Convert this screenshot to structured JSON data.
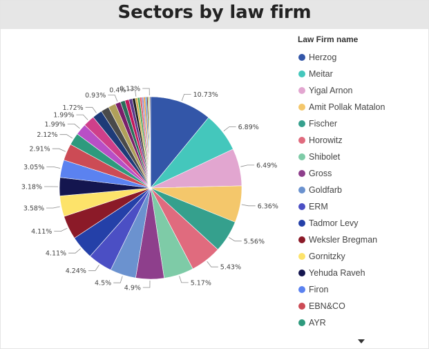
{
  "chart_data": {
    "type": "pie",
    "title": "Sectors by law firm",
    "legend_title": "Law Firm name",
    "legend_placement": "right",
    "series": [
      {
        "name": "Herzog",
        "value": 10.73,
        "label": "10.73%",
        "color": "#3356a8"
      },
      {
        "name": "Meitar",
        "value": 6.89,
        "label": "6.89%",
        "color": "#44c7bc"
      },
      {
        "name": "Yigal Arnon",
        "value": 6.49,
        "label": "6.49%",
        "color": "#e2a6d0"
      },
      {
        "name": "Amit Pollak Matalon",
        "value": 6.36,
        "label": "6.36%",
        "color": "#f4c76b"
      },
      {
        "name": "Fischer",
        "value": 5.56,
        "label": "5.56%",
        "color": "#35a08d"
      },
      {
        "name": "Horowitz",
        "value": 5.43,
        "label": "5.43%",
        "color": "#e06b7e"
      },
      {
        "name": "Shibolet",
        "value": 5.17,
        "label": "5.17%",
        "color": "#7ecba7"
      },
      {
        "name": "Gross",
        "value": 4.9,
        "label": "4.9%",
        "color": "#8e3f8c"
      },
      {
        "name": "Goldfarb",
        "value": 4.5,
        "label": "4.5%",
        "color": "#6b92cf"
      },
      {
        "name": "ERM",
        "value": 4.24,
        "label": "4.24%",
        "color": "#4b4fc4"
      },
      {
        "name": "Tadmor Levy",
        "value": 4.11,
        "label": "4.11%",
        "color": "#2440a8"
      },
      {
        "name": "Weksler Bregman",
        "value": 4.11,
        "label": "4.11%",
        "color": "#8b1a28"
      },
      {
        "name": "Gornitzky",
        "value": 3.58,
        "label": "3.58%",
        "color": "#fde36a"
      },
      {
        "name": "Yehuda Raveh",
        "value": 3.18,
        "label": "3.18%",
        "color": "#14164f"
      },
      {
        "name": "Firon",
        "value": 3.05,
        "label": "3.05%",
        "color": "#5b82f0"
      },
      {
        "name": "EBN&CO",
        "value": 2.91,
        "label": "2.91%",
        "color": "#cc4b55"
      },
      {
        "name": "AYR",
        "value": 2.12,
        "label": "2.12%",
        "color": "#2e9a7d"
      },
      {
        "name": "",
        "value": 1.99,
        "label": "1.99%",
        "color": "#b84fc6"
      },
      {
        "name": "",
        "value": 1.99,
        "label": "1.99%",
        "color": "#cf3f8a"
      },
      {
        "name": "",
        "value": 1.72,
        "label": "1.72%",
        "color": "#1e3b78"
      },
      {
        "name": "",
        "value": 1.4,
        "label": "",
        "color": "#4a4a4a"
      },
      {
        "name": "",
        "value": 1.3,
        "label": "",
        "color": "#b0a05a"
      },
      {
        "name": "",
        "value": 0.93,
        "label": "0.93%",
        "color": "#7a1f6a"
      },
      {
        "name": "",
        "value": 0.8,
        "label": "",
        "color": "#2a6e5a"
      },
      {
        "name": "",
        "value": 0.7,
        "label": "",
        "color": "#c2185b"
      },
      {
        "name": "",
        "value": 0.6,
        "label": "",
        "color": "#5a3a8a"
      },
      {
        "name": "",
        "value": 0.5,
        "label": "",
        "color": "#222222"
      },
      {
        "name": "",
        "value": 0.4,
        "label": "0.4%",
        "color": "#d0b04a"
      },
      {
        "name": "",
        "value": 0.4,
        "label": "",
        "color": "#4aa35a"
      },
      {
        "name": "",
        "value": 0.35,
        "label": "",
        "color": "#e05a6a"
      },
      {
        "name": "",
        "value": 0.3,
        "label": "",
        "color": "#8a8ad0"
      },
      {
        "name": "",
        "value": 0.3,
        "label": "",
        "color": "#f29a3a"
      },
      {
        "name": "",
        "value": 0.25,
        "label": "",
        "color": "#3a8ad0"
      },
      {
        "name": "",
        "value": 0.2,
        "label": "",
        "color": "#6a2a2a"
      },
      {
        "name": "",
        "value": 0.2,
        "label": "",
        "color": "#a0c04a"
      },
      {
        "name": "",
        "value": 0.13,
        "label": "0.13%",
        "color": "#e8c0e0"
      },
      {
        "name": "",
        "value": 0.13,
        "label": "",
        "color": "#0a0a3a"
      }
    ],
    "legend_visible_count": 17
  }
}
